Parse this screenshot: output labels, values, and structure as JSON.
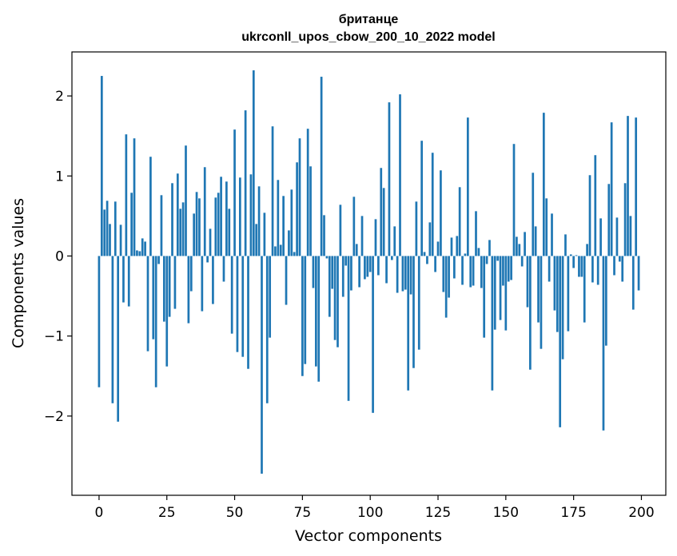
{
  "chart_data": {
    "type": "bar",
    "title": "британце",
    "subtitle": "ukrconll_upos_cbow_200_10_2022 model",
    "xlabel": "Vector components",
    "ylabel": "Components values",
    "xlim": [
      -10,
      209
    ],
    "ylim": [
      -2.99,
      2.55
    ],
    "xticks": [
      0,
      25,
      50,
      75,
      100,
      125,
      150,
      175,
      200
    ],
    "xtick_labels": [
      "0",
      "25",
      "50",
      "75",
      "100",
      "125",
      "150",
      "175",
      "200"
    ],
    "yticks": [
      -2,
      -1,
      0,
      1,
      2
    ],
    "ytick_labels": [
      "−2",
      "−1",
      "0",
      "1",
      "2"
    ],
    "grid": false,
    "bar_color": "#1f77b4",
    "x": [
      0,
      1,
      2,
      3,
      4,
      5,
      6,
      7,
      8,
      9,
      10,
      11,
      12,
      13,
      14,
      15,
      16,
      17,
      18,
      19,
      20,
      21,
      22,
      23,
      24,
      25,
      26,
      27,
      28,
      29,
      30,
      31,
      32,
      33,
      34,
      35,
      36,
      37,
      38,
      39,
      40,
      41,
      42,
      43,
      44,
      45,
      46,
      47,
      48,
      49,
      50,
      51,
      52,
      53,
      54,
      55,
      56,
      57,
      58,
      59,
      60,
      61,
      62,
      63,
      64,
      65,
      66,
      67,
      68,
      69,
      70,
      71,
      72,
      73,
      74,
      75,
      76,
      77,
      78,
      79,
      80,
      81,
      82,
      83,
      84,
      85,
      86,
      87,
      88,
      89,
      90,
      91,
      92,
      93,
      94,
      95,
      96,
      97,
      98,
      99,
      100,
      101,
      102,
      103,
      104,
      105,
      106,
      107,
      108,
      109,
      110,
      111,
      112,
      113,
      114,
      115,
      116,
      117,
      118,
      119,
      120,
      121,
      122,
      123,
      124,
      125,
      126,
      127,
      128,
      129,
      130,
      131,
      132,
      133,
      134,
      135,
      136,
      137,
      138,
      139,
      140,
      141,
      142,
      143,
      144,
      145,
      146,
      147,
      148,
      149,
      150,
      151,
      152,
      153,
      154,
      155,
      156,
      157,
      158,
      159,
      160,
      161,
      162,
      163,
      164,
      165,
      166,
      167,
      168,
      169,
      170,
      171,
      172,
      173,
      174,
      175,
      176,
      177,
      178,
      179,
      180,
      181,
      182,
      183,
      184,
      185,
      186,
      187,
      188,
      189,
      190,
      191,
      192,
      193,
      194,
      195,
      196,
      197,
      198,
      199
    ],
    "values": [
      -1.64,
      2.25,
      0.58,
      0.69,
      0.4,
      -1.84,
      0.68,
      -2.07,
      0.39,
      -0.58,
      1.52,
      -0.63,
      0.79,
      1.47,
      0.07,
      0.06,
      0.22,
      0.18,
      -1.19,
      1.24,
      -1.04,
      -1.64,
      -0.1,
      0.76,
      -0.82,
      -1.38,
      -0.76,
      0.91,
      -0.66,
      1.03,
      0.59,
      0.67,
      1.38,
      -0.84,
      -0.44,
      0.53,
      0.8,
      0.72,
      -0.69,
      1.11,
      -0.08,
      0.34,
      -0.6,
      0.73,
      0.79,
      0.99,
      -0.32,
      0.93,
      0.59,
      -0.97,
      1.58,
      -1.2,
      0.98,
      -1.26,
      1.82,
      -1.41,
      1.02,
      2.32,
      0.4,
      0.87,
      -2.72,
      0.54,
      -1.84,
      -1.02,
      1.62,
      0.12,
      0.95,
      0.14,
      0.75,
      -0.61,
      0.32,
      0.83,
      0.05,
      1.17,
      1.47,
      -1.5,
      -1.35,
      1.59,
      1.12,
      -0.4,
      -1.38,
      -1.57,
      2.24,
      0.51,
      -0.03,
      -0.76,
      -0.41,
      -1.05,
      -1.14,
      0.64,
      -0.51,
      -0.12,
      -1.81,
      -0.43,
      0.74,
      0.15,
      -0.39,
      0.5,
      -0.29,
      -0.26,
      -0.2,
      -1.96,
      0.46,
      -0.24,
      1.1,
      0.85,
      -0.34,
      1.92,
      -0.05,
      0.37,
      -0.46,
      2.02,
      -0.44,
      -0.42,
      -1.68,
      -0.48,
      -1.4,
      0.68,
      -1.17,
      1.44,
      0.05,
      -0.1,
      0.42,
      1.29,
      -0.2,
      0.18,
      1.07,
      -0.45,
      -0.77,
      -0.52,
      0.23,
      -0.28,
      0.25,
      0.86,
      -0.36,
      0.03,
      1.73,
      -0.39,
      -0.37,
      0.56,
      0.1,
      -0.4,
      -1.02,
      -0.1,
      0.2,
      -1.68,
      -0.92,
      -0.06,
      -0.8,
      -0.37,
      -0.93,
      -0.32,
      -0.3,
      1.4,
      0.24,
      0.15,
      -0.13,
      0.3,
      -0.64,
      -1.42,
      1.04,
      0.37,
      -0.83,
      -1.16,
      1.79,
      0.72,
      -0.32,
      0.53,
      -0.68,
      -0.95,
      -2.14,
      -1.29,
      0.27,
      -0.94,
      0.02,
      -0.15,
      0.01,
      -0.26,
      -0.26,
      -0.83,
      0.15,
      1.01,
      -0.33,
      1.26,
      -0.36,
      0.47,
      -2.18,
      -1.12,
      0.9,
      1.67,
      -0.24,
      0.48,
      -0.07,
      -0.32,
      0.91,
      1.75,
      0.5,
      -0.67,
      1.73,
      -0.43
    ]
  }
}
